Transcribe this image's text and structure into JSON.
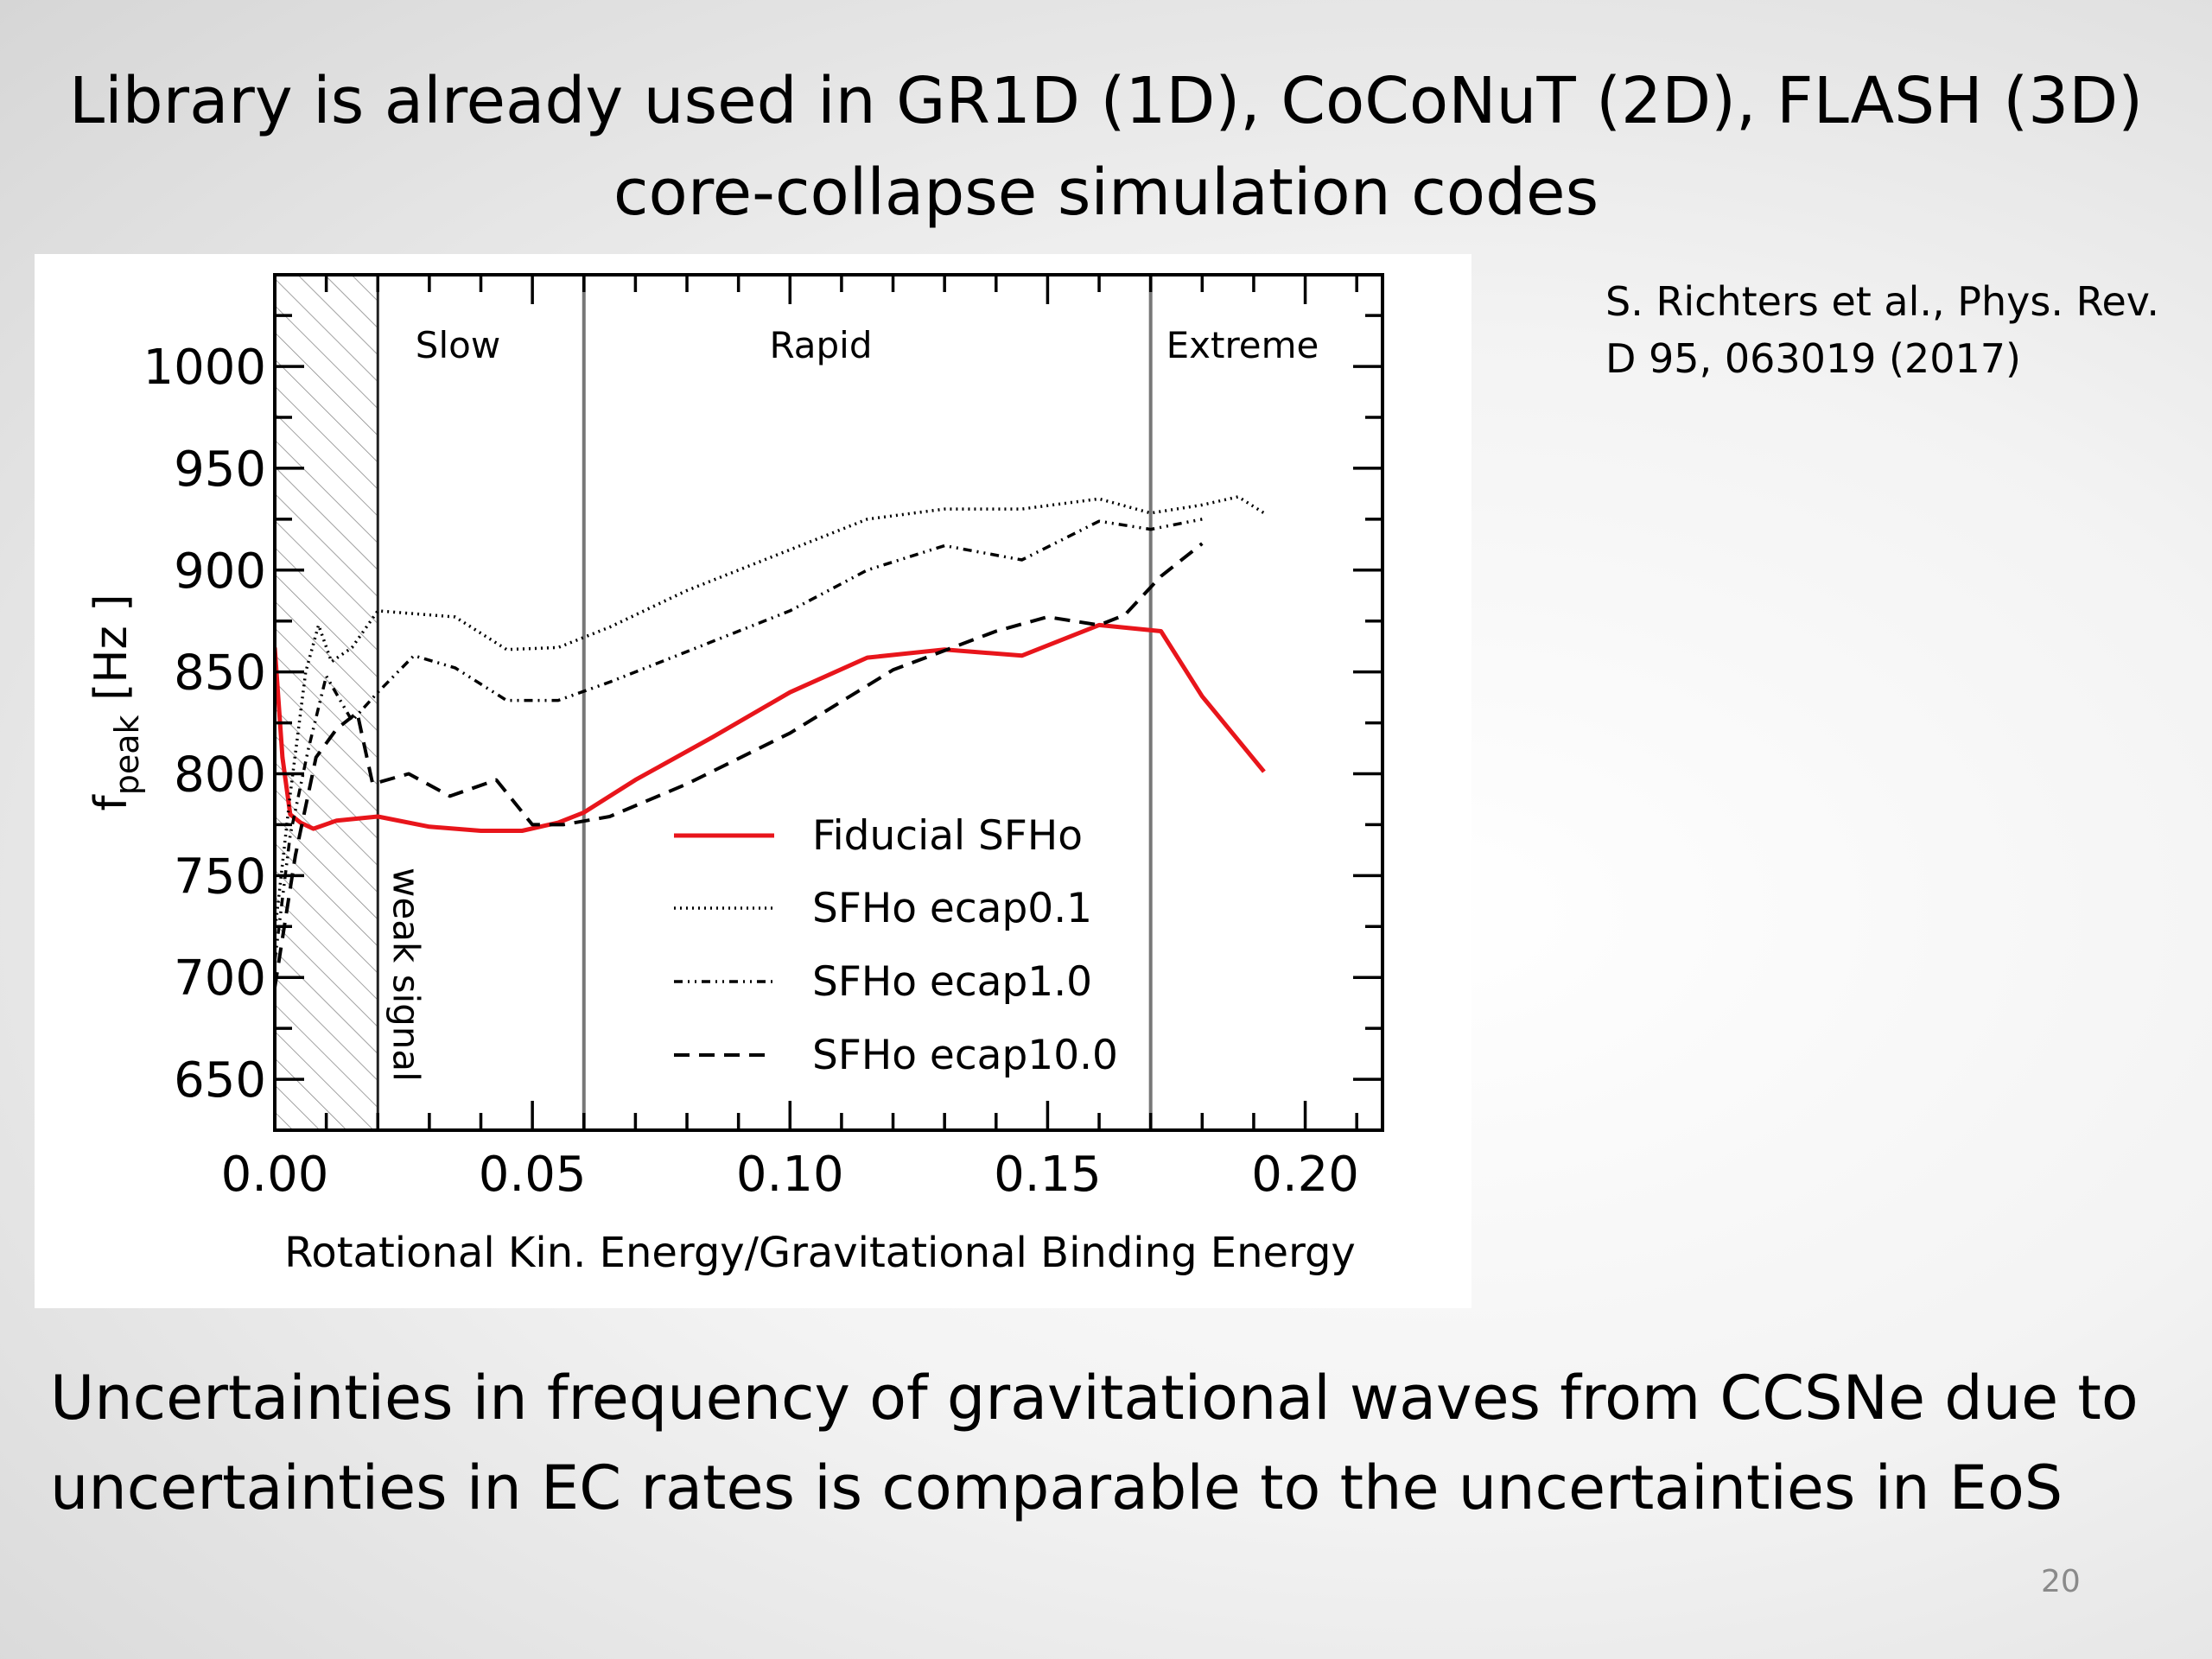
{
  "slide": {
    "title_lines": [
      "Library is already used in GR1D (1D), CoCoNuT (2D), FLASH (3D)",
      "core-collapse simulation codes"
    ],
    "citation_lines": [
      "S. Richters et al., Phys. Rev.",
      "D 95, 063019 (2017)"
    ],
    "body_lines": [
      "Uncertainties in frequency of gravitational waves from CCSNe due to",
      "uncertainties in EC rates is comparable to the uncertainties in EoS"
    ],
    "page_number": "20"
  },
  "chart_data": {
    "type": "line",
    "title": "",
    "xlabel": "Rotational Kin. Energy/Gravitational Binding Energy",
    "ylabel": "f",
    "ylabel_subscript": "peak",
    "ylabel_unit": "[Hz ]",
    "xlim": [
      0.0,
      0.215
    ],
    "ylim": [
      625,
      1045
    ],
    "xticks": [
      0.0,
      0.05,
      0.1,
      0.15,
      0.2
    ],
    "xtick_labels": [
      "0.00",
      "0.05",
      "0.10",
      "0.15",
      "0.20"
    ],
    "yticks": [
      650,
      700,
      750,
      800,
      850,
      900,
      950,
      1000
    ],
    "ytick_labels": [
      "650",
      "700",
      "750",
      "800",
      "850",
      "900",
      "950",
      "1000"
    ],
    "grid": false,
    "legend_position": "lower-center",
    "regions": [
      {
        "label": "Slow",
        "x_start": 0.02,
        "x_end": 0.06
      },
      {
        "label": "Rapid",
        "x_start": 0.06,
        "x_end": 0.17
      },
      {
        "label": "Extreme",
        "x_start": 0.17,
        "x_end": 0.215
      }
    ],
    "boundaries": [
      0.02,
      0.06,
      0.17
    ],
    "weak_signal": {
      "label": "weak signal",
      "x_start": 0.0,
      "x_end": 0.02
    },
    "series": [
      {
        "name": "Fiducial SFHo",
        "color": "#e8151b",
        "dash": "solid",
        "x": [
          0.0,
          0.0015,
          0.003,
          0.005,
          0.0075,
          0.012,
          0.02,
          0.03,
          0.04,
          0.048,
          0.055,
          0.06,
          0.07,
          0.085,
          0.1,
          0.115,
          0.13,
          0.145,
          0.16,
          0.172,
          0.18,
          0.192
        ],
        "y": [
          862,
          808,
          780,
          776,
          773,
          777,
          779,
          774,
          772,
          772,
          776,
          781,
          797,
          818,
          840,
          857,
          861,
          858,
          873,
          870,
          838,
          801
        ]
      },
      {
        "name": "SFHo ecap0.1",
        "color": "#000000",
        "dash": "dotted",
        "x": [
          0.0,
          0.003,
          0.006,
          0.0085,
          0.011,
          0.015,
          0.02,
          0.025,
          0.035,
          0.045,
          0.055,
          0.065,
          0.08,
          0.1,
          0.115,
          0.13,
          0.145,
          0.16,
          0.17,
          0.18,
          0.187,
          0.192
        ],
        "y": [
          722,
          790,
          850,
          873,
          855,
          862,
          880,
          879,
          877,
          861,
          862,
          872,
          890,
          910,
          925,
          930,
          930,
          935,
          928,
          932,
          936,
          928
        ]
      },
      {
        "name": "SFHo ecap1.0",
        "color": "#000000",
        "dash": "dashdot",
        "x": [
          0.0,
          0.003,
          0.0065,
          0.01,
          0.015,
          0.02,
          0.027,
          0.035,
          0.045,
          0.055,
          0.065,
          0.08,
          0.1,
          0.115,
          0.13,
          0.145,
          0.16,
          0.17,
          0.18
        ],
        "y": [
          708,
          770,
          812,
          848,
          826,
          840,
          858,
          852,
          836,
          836,
          845,
          860,
          880,
          900,
          912,
          905,
          924,
          920,
          925
        ]
      },
      {
        "name": "SFHo ecap10.0",
        "color": "#000000",
        "dash": "dashed",
        "x": [
          0.0,
          0.004,
          0.008,
          0.012,
          0.016,
          0.019,
          0.026,
          0.034,
          0.043,
          0.05,
          0.056,
          0.065,
          0.08,
          0.1,
          0.12,
          0.14,
          0.15,
          0.16,
          0.165,
          0.172,
          0.18
        ],
        "y": [
          695,
          760,
          808,
          822,
          830,
          795,
          800,
          789,
          797,
          775,
          775,
          779,
          795,
          820,
          851,
          870,
          877,
          873,
          878,
          897,
          913
        ]
      }
    ]
  }
}
